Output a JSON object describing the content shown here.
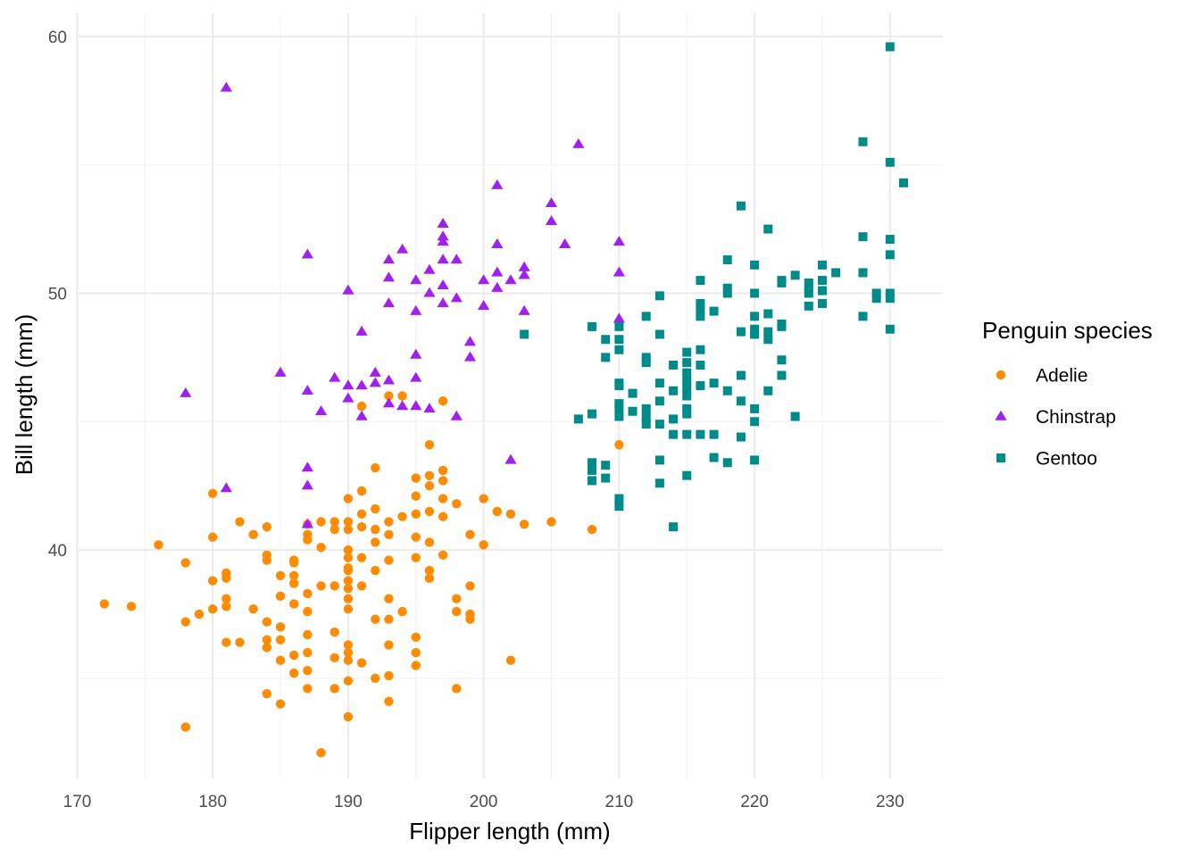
{
  "chart_data": {
    "type": "scatter",
    "title": "",
    "xlabel": "Flipper length (mm)",
    "ylabel": "Bill length (mm)",
    "xlim": [
      170.1,
      233.9
    ],
    "ylim": [
      31.1,
      60.9
    ],
    "x_ticks": [
      170,
      180,
      190,
      200,
      210,
      220,
      230
    ],
    "y_ticks": [
      40,
      50,
      60
    ],
    "grid": true,
    "legend": {
      "title": "Penguin species",
      "position": "right"
    },
    "series": [
      {
        "name": "Adelie",
        "color": "#FF8C00",
        "marker": "circle",
        "points": [
          [
            172,
            37.9
          ],
          [
            174,
            37.8
          ],
          [
            176,
            40.2
          ],
          [
            178,
            33.1
          ],
          [
            178,
            37.2
          ],
          [
            178,
            39.5
          ],
          [
            179,
            37.5
          ],
          [
            180,
            37.7
          ],
          [
            180,
            38.8
          ],
          [
            180,
            40.5
          ],
          [
            180,
            42.2
          ],
          [
            181,
            36.4
          ],
          [
            181,
            37.8
          ],
          [
            181,
            38.1
          ],
          [
            181,
            38.9
          ],
          [
            181,
            39.1
          ],
          [
            182,
            36.4
          ],
          [
            182,
            41.1
          ],
          [
            183,
            37.7
          ],
          [
            183,
            40.6
          ],
          [
            184,
            34.4
          ],
          [
            184,
            36.2
          ],
          [
            184,
            36.5
          ],
          [
            184,
            37.2
          ],
          [
            184,
            39.6
          ],
          [
            184,
            39.8
          ],
          [
            184,
            40.9
          ],
          [
            185,
            34.0
          ],
          [
            185,
            35.7
          ],
          [
            185,
            36.5
          ],
          [
            185,
            37.0
          ],
          [
            185,
            38.2
          ],
          [
            185,
            39.0
          ],
          [
            186,
            35.2
          ],
          [
            186,
            35.9
          ],
          [
            186,
            37.9
          ],
          [
            186,
            38.7
          ],
          [
            186,
            39.0
          ],
          [
            186,
            39.5
          ],
          [
            186,
            39.6
          ],
          [
            187,
            34.6
          ],
          [
            187,
            35.3
          ],
          [
            187,
            36.0
          ],
          [
            187,
            36.7
          ],
          [
            187,
            37.6
          ],
          [
            187,
            38.3
          ],
          [
            187,
            40.4
          ],
          [
            187,
            40.6
          ],
          [
            187,
            41.0
          ],
          [
            188,
            32.1
          ],
          [
            188,
            38.6
          ],
          [
            188,
            40.1
          ],
          [
            188,
            41.1
          ],
          [
            189,
            34.6
          ],
          [
            189,
            35.8
          ],
          [
            189,
            36.8
          ],
          [
            189,
            38.6
          ],
          [
            189,
            40.8
          ],
          [
            189,
            41.1
          ],
          [
            190,
            33.5
          ],
          [
            190,
            34.9
          ],
          [
            190,
            35.7
          ],
          [
            190,
            36.0
          ],
          [
            190,
            36.3
          ],
          [
            190,
            37.7
          ],
          [
            190,
            38.1
          ],
          [
            190,
            38.5
          ],
          [
            190,
            38.8
          ],
          [
            190,
            39.2
          ],
          [
            190,
            39.3
          ],
          [
            190,
            39.7
          ],
          [
            190,
            40.0
          ],
          [
            190,
            40.8
          ],
          [
            190,
            41.1
          ],
          [
            190,
            42.0
          ],
          [
            191,
            35.6
          ],
          [
            191,
            38.6
          ],
          [
            191,
            39.7
          ],
          [
            191,
            40.9
          ],
          [
            191,
            41.4
          ],
          [
            191,
            42.3
          ],
          [
            191,
            45.6
          ],
          [
            192,
            35.0
          ],
          [
            192,
            37.3
          ],
          [
            192,
            39.2
          ],
          [
            192,
            40.3
          ],
          [
            192,
            40.8
          ],
          [
            192,
            41.6
          ],
          [
            192,
            43.2
          ],
          [
            193,
            34.1
          ],
          [
            193,
            35.1
          ],
          [
            193,
            36.3
          ],
          [
            193,
            37.3
          ],
          [
            193,
            38.1
          ],
          [
            193,
            39.6
          ],
          [
            193,
            40.6
          ],
          [
            193,
            41.1
          ],
          [
            193,
            46.0
          ],
          [
            194,
            37.6
          ],
          [
            194,
            41.3
          ],
          [
            194,
            46.0
          ],
          [
            195,
            35.5
          ],
          [
            195,
            36.0
          ],
          [
            195,
            36.6
          ],
          [
            195,
            39.7
          ],
          [
            195,
            40.5
          ],
          [
            195,
            41.4
          ],
          [
            195,
            42.1
          ],
          [
            195,
            42.8
          ],
          [
            196,
            38.9
          ],
          [
            196,
            39.2
          ],
          [
            196,
            40.3
          ],
          [
            196,
            41.5
          ],
          [
            196,
            42.5
          ],
          [
            196,
            42.9
          ],
          [
            196,
            44.1
          ],
          [
            197,
            39.8
          ],
          [
            197,
            41.3
          ],
          [
            197,
            42.0
          ],
          [
            197,
            42.7
          ],
          [
            197,
            43.1
          ],
          [
            197,
            45.8
          ],
          [
            198,
            34.6
          ],
          [
            198,
            37.6
          ],
          [
            198,
            38.1
          ],
          [
            198,
            41.8
          ],
          [
            199,
            37.3
          ],
          [
            199,
            37.5
          ],
          [
            199,
            38.6
          ],
          [
            199,
            40.6
          ],
          [
            200,
            40.2
          ],
          [
            200,
            42.0
          ],
          [
            201,
            41.5
          ],
          [
            202,
            35.7
          ],
          [
            202,
            41.4
          ],
          [
            203,
            41.0
          ],
          [
            205,
            41.1
          ],
          [
            208,
            40.8
          ],
          [
            210,
            44.1
          ]
        ]
      },
      {
        "name": "Chinstrap",
        "color": "#A020F0",
        "marker": "triangle",
        "points": [
          [
            178,
            46.1
          ],
          [
            181,
            42.4
          ],
          [
            181,
            58.0
          ],
          [
            185,
            46.9
          ],
          [
            187,
            41.0
          ],
          [
            187,
            42.5
          ],
          [
            187,
            43.2
          ],
          [
            187,
            46.2
          ],
          [
            187,
            51.5
          ],
          [
            188,
            45.4
          ],
          [
            189,
            46.7
          ],
          [
            190,
            45.9
          ],
          [
            190,
            46.4
          ],
          [
            190,
            50.1
          ],
          [
            191,
            45.2
          ],
          [
            191,
            46.4
          ],
          [
            191,
            48.5
          ],
          [
            192,
            46.5
          ],
          [
            192,
            46.9
          ],
          [
            193,
            45.7
          ],
          [
            193,
            46.6
          ],
          [
            193,
            49.6
          ],
          [
            193,
            50.6
          ],
          [
            193,
            51.3
          ],
          [
            194,
            45.6
          ],
          [
            194,
            51.7
          ],
          [
            195,
            45.6
          ],
          [
            195,
            46.7
          ],
          [
            195,
            47.6
          ],
          [
            195,
            49.3
          ],
          [
            195,
            50.5
          ],
          [
            196,
            45.5
          ],
          [
            196,
            50.0
          ],
          [
            196,
            50.9
          ],
          [
            197,
            49.6
          ],
          [
            197,
            50.3
          ],
          [
            197,
            51.3
          ],
          [
            197,
            52.0
          ],
          [
            197,
            52.2
          ],
          [
            197,
            52.7
          ],
          [
            198,
            45.2
          ],
          [
            198,
            49.8
          ],
          [
            198,
            51.3
          ],
          [
            199,
            47.5
          ],
          [
            199,
            48.1
          ],
          [
            200,
            49.5
          ],
          [
            200,
            50.5
          ],
          [
            201,
            50.2
          ],
          [
            201,
            50.8
          ],
          [
            201,
            51.9
          ],
          [
            201,
            54.2
          ],
          [
            202,
            50.5
          ],
          [
            202,
            43.5
          ],
          [
            203,
            49.3
          ],
          [
            203,
            50.7
          ],
          [
            203,
            51.0
          ],
          [
            205,
            52.8
          ],
          [
            205,
            53.5
          ],
          [
            206,
            51.9
          ],
          [
            207,
            55.8
          ],
          [
            210,
            49.0
          ],
          [
            210,
            50.8
          ],
          [
            210,
            52.0
          ]
        ]
      },
      {
        "name": "Gentoo",
        "color": "#008B8B",
        "marker": "square",
        "points": [
          [
            203,
            48.4
          ],
          [
            207,
            45.1
          ],
          [
            208,
            42.7
          ],
          [
            208,
            43.1
          ],
          [
            208,
            43.4
          ],
          [
            208,
            45.3
          ],
          [
            208,
            48.7
          ],
          [
            209,
            42.8
          ],
          [
            209,
            43.3
          ],
          [
            209,
            47.5
          ],
          [
            209,
            48.2
          ],
          [
            210,
            41.7
          ],
          [
            210,
            42.0
          ],
          [
            210,
            45.2
          ],
          [
            210,
            45.5
          ],
          [
            210,
            45.7
          ],
          [
            210,
            46.4
          ],
          [
            210,
            46.5
          ],
          [
            210,
            47.8
          ],
          [
            210,
            48.2
          ],
          [
            210,
            48.7
          ],
          [
            211,
            46.1
          ],
          [
            211,
            45.4
          ],
          [
            212,
            44.9
          ],
          [
            212,
            45.2
          ],
          [
            212,
            45.5
          ],
          [
            212,
            47.3
          ],
          [
            212,
            47.5
          ],
          [
            212,
            49.1
          ],
          [
            213,
            42.6
          ],
          [
            213,
            43.5
          ],
          [
            213,
            44.9
          ],
          [
            213,
            45.8
          ],
          [
            213,
            46.5
          ],
          [
            213,
            48.4
          ],
          [
            213,
            49.9
          ],
          [
            214,
            40.9
          ],
          [
            214,
            44.5
          ],
          [
            214,
            45.1
          ],
          [
            214,
            46.2
          ],
          [
            214,
            47.2
          ],
          [
            215,
            42.9
          ],
          [
            215,
            44.5
          ],
          [
            215,
            45.3
          ],
          [
            215,
            45.5
          ],
          [
            215,
            46.0
          ],
          [
            215,
            46.3
          ],
          [
            215,
            46.6
          ],
          [
            215,
            46.9
          ],
          [
            215,
            47.3
          ],
          [
            215,
            47.7
          ],
          [
            216,
            44.5
          ],
          [
            216,
            46.4
          ],
          [
            216,
            47.2
          ],
          [
            216,
            47.8
          ],
          [
            216,
            49.1
          ],
          [
            216,
            49.4
          ],
          [
            216,
            49.6
          ],
          [
            216,
            50.5
          ],
          [
            217,
            43.6
          ],
          [
            217,
            44.5
          ],
          [
            217,
            46.5
          ],
          [
            217,
            49.3
          ],
          [
            218,
            43.4
          ],
          [
            218,
            46.2
          ],
          [
            218,
            50.0
          ],
          [
            218,
            50.2
          ],
          [
            218,
            51.3
          ],
          [
            219,
            44.4
          ],
          [
            219,
            45.8
          ],
          [
            219,
            46.8
          ],
          [
            219,
            48.5
          ],
          [
            219,
            53.4
          ],
          [
            220,
            43.5
          ],
          [
            220,
            45.0
          ],
          [
            220,
            45.5
          ],
          [
            220,
            48.4
          ],
          [
            220,
            48.6
          ],
          [
            220,
            49.1
          ],
          [
            220,
            50.0
          ],
          [
            220,
            51.1
          ],
          [
            221,
            46.2
          ],
          [
            221,
            48.2
          ],
          [
            221,
            48.5
          ],
          [
            221,
            49.2
          ],
          [
            221,
            52.5
          ],
          [
            222,
            46.8
          ],
          [
            222,
            47.4
          ],
          [
            222,
            48.7
          ],
          [
            222,
            48.8
          ],
          [
            222,
            50.4
          ],
          [
            222,
            50.5
          ],
          [
            223,
            45.2
          ],
          [
            223,
            50.7
          ],
          [
            224,
            49.5
          ],
          [
            224,
            50.0
          ],
          [
            224,
            50.2
          ],
          [
            224,
            50.4
          ],
          [
            225,
            49.6
          ],
          [
            225,
            50.1
          ],
          [
            225,
            50.5
          ],
          [
            225,
            51.1
          ],
          [
            226,
            50.8
          ],
          [
            228,
            49.1
          ],
          [
            228,
            50.8
          ],
          [
            228,
            52.2
          ],
          [
            228,
            55.9
          ],
          [
            229,
            49.8
          ],
          [
            229,
            50.0
          ],
          [
            230,
            48.6
          ],
          [
            230,
            49.8
          ],
          [
            230,
            50.0
          ],
          [
            230,
            51.5
          ],
          [
            230,
            52.1
          ],
          [
            230,
            55.1
          ],
          [
            230,
            59.6
          ],
          [
            231,
            54.3
          ]
        ]
      }
    ]
  }
}
